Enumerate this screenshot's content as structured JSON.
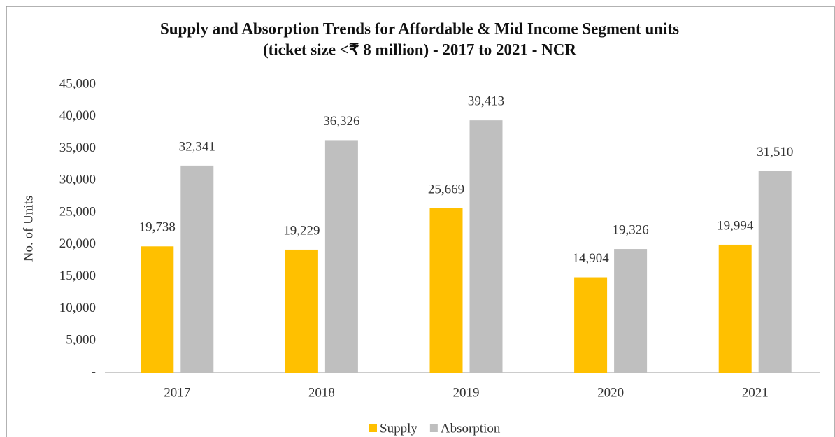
{
  "chart_data": {
    "type": "bar",
    "title": [
      "Supply and Absorption Trends for Affordable & Mid Income Segment units",
      "(ticket size <₹ 8 million) - 2017 to 2021 - NCR"
    ],
    "y_label": "No. of Units",
    "categories": [
      "2017",
      "2018",
      "2019",
      "2020",
      "2021"
    ],
    "series": [
      {
        "name": "Supply",
        "color": "#ffc000",
        "values": [
          19738,
          19229,
          25669,
          14904,
          19994
        ],
        "value_labels": [
          "19,738",
          "19,229",
          "25,669",
          "14,904",
          "19,994"
        ]
      },
      {
        "name": "Absorption",
        "color": "#bfbfbf",
        "values": [
          32341,
          36326,
          39413,
          19326,
          31510
        ],
        "value_labels": [
          "32,341",
          "36,326",
          "39,413",
          "19,326",
          "31,510"
        ]
      }
    ],
    "ylim": [
      0,
      45000
    ],
    "yticks": [
      {
        "value": 0,
        "label": "-"
      },
      {
        "value": 5000,
        "label": "5,000"
      },
      {
        "value": 10000,
        "label": "10,000"
      },
      {
        "value": 15000,
        "label": "15,000"
      },
      {
        "value": 20000,
        "label": "20,000"
      },
      {
        "value": 25000,
        "label": "25,000"
      },
      {
        "value": 30000,
        "label": "30,000"
      },
      {
        "value": 35000,
        "label": "35,000"
      },
      {
        "value": 40000,
        "label": "40,000"
      },
      {
        "value": 45000,
        "label": "45,000"
      }
    ],
    "grid": false,
    "legend": "bottom"
  }
}
